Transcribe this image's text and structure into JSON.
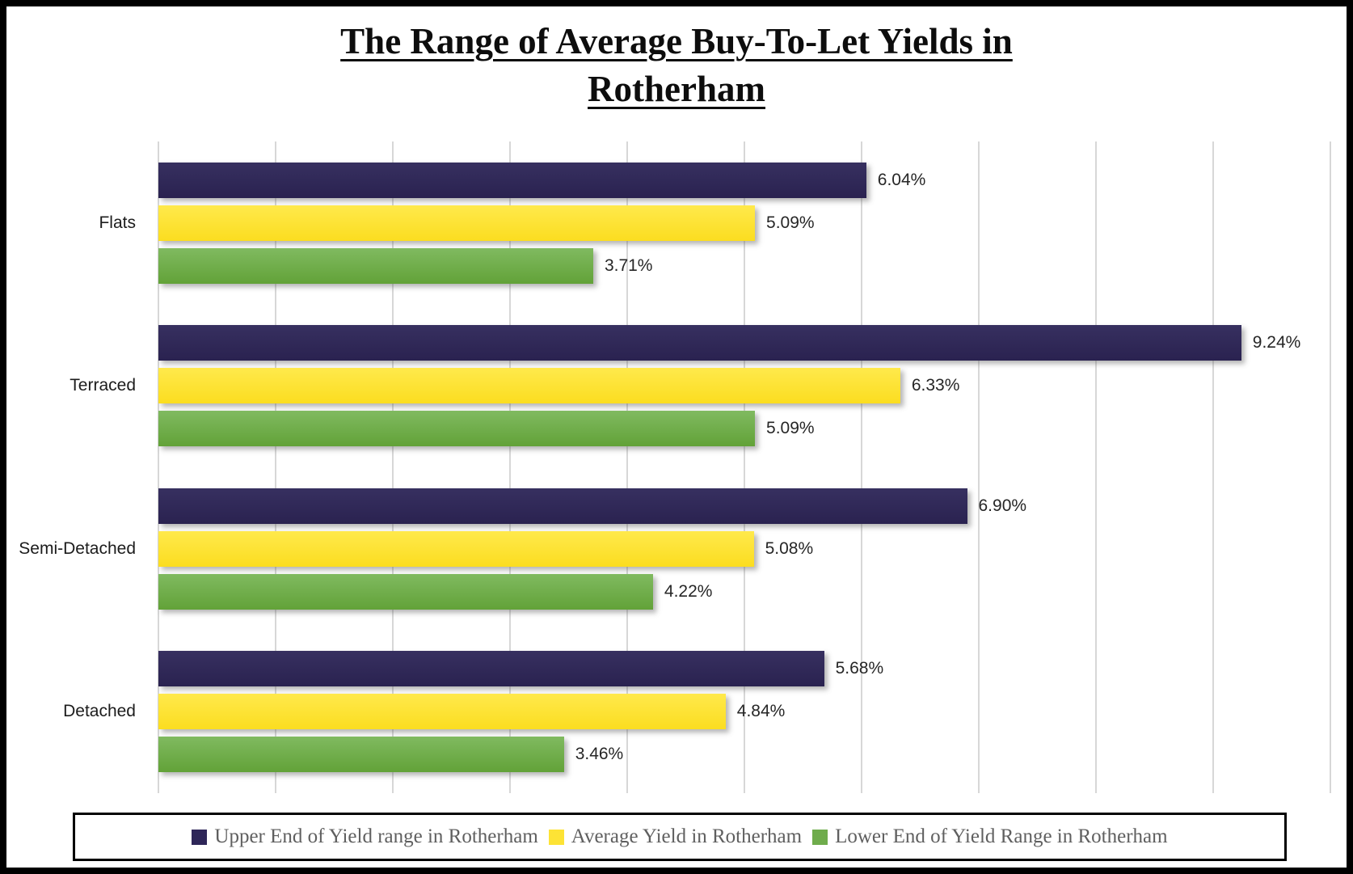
{
  "title": {
    "line1": "The Range of Average Buy-To-Let Yields in",
    "line2": "Rotherham"
  },
  "chart_data": {
    "type": "bar",
    "orientation": "horizontal",
    "title": "The Range of Average Buy-To-Let Yields in Rotherham",
    "categories": [
      "Flats",
      "Terraced",
      "Semi-Detached",
      "Detached"
    ],
    "series": [
      {
        "name": "Upper End of Yield range in Rotherham",
        "color": "#2e2658",
        "fill_top": "#373060",
        "fill_bottom": "#2a2250",
        "values": [
          6.04,
          9.24,
          6.9,
          5.68
        ],
        "data_labels": [
          "6.04%",
          "9.24%",
          "6.90%",
          "5.68%"
        ]
      },
      {
        "name": "Average Yield in Rotherham",
        "color": "#fde335",
        "fill_top": "#ffe94c",
        "fill_bottom": "#fbdd20",
        "values": [
          5.09,
          6.33,
          5.08,
          4.84
        ],
        "data_labels": [
          "5.09%",
          "6.33%",
          "5.08%",
          "4.84%"
        ]
      },
      {
        "name": "Lower End of Yield Range in Rotherham",
        "color": "#6fac4c",
        "fill_top": "#80ba60",
        "fill_bottom": "#62a238",
        "values": [
          3.71,
          5.09,
          4.22,
          3.46
        ],
        "data_labels": [
          "3.71%",
          "5.09%",
          "4.22%",
          "3.46%"
        ]
      }
    ],
    "xlim": [
      0,
      10
    ],
    "gridline_interval": 1,
    "grid": true,
    "axis_tick_labels_shown": false,
    "legend_position": "bottom",
    "gridline_color": "#d7d7d7"
  }
}
